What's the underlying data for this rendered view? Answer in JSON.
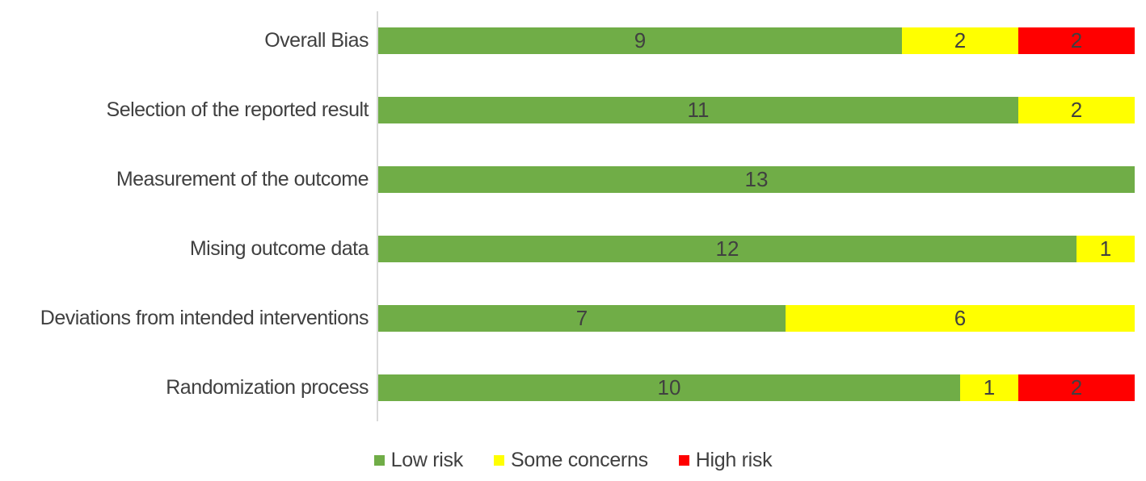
{
  "chart_data": {
    "type": "bar",
    "orientation": "horizontal",
    "stacked": true,
    "title": "",
    "xlabel": "",
    "ylabel": "",
    "categories": [
      "Overall Bias",
      "Selection of the reported result",
      "Measurement of the outcome",
      "Mising outcome data",
      "Deviations from intended interventions",
      "Randomization process"
    ],
    "series": [
      {
        "name": "Low risk",
        "color": "#70AD47",
        "values": [
          9,
          11,
          13,
          12,
          7,
          10
        ]
      },
      {
        "name": "Some concerns",
        "color": "#FFFF00",
        "values": [
          2,
          2,
          0,
          1,
          6,
          1
        ]
      },
      {
        "name": "High risk",
        "color": "#FF0000",
        "values": [
          2,
          0,
          0,
          0,
          0,
          2
        ]
      }
    ],
    "xlim": [
      0,
      13
    ],
    "data_labels": true,
    "grid": false,
    "legend_position": "bottom",
    "axis_line_color": "#D9D9D9",
    "text_color": "#404040",
    "background_color": "#FFFFFF"
  }
}
